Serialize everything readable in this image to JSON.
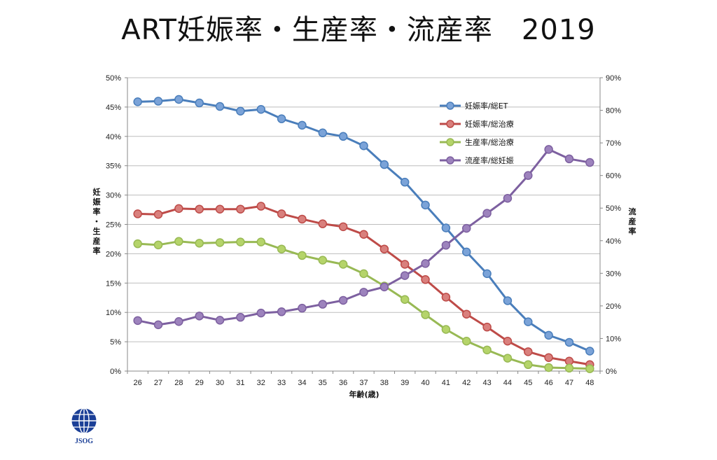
{
  "title": "ART妊娠率・生産率・流産率　2019",
  "logo": {
    "label": "JSOG"
  },
  "chart_data": {
    "type": "line",
    "title": "ART妊娠率・生産率・流産率　2019",
    "xlabel": "年齢(歳)",
    "ylabel": "妊娠率・生産率",
    "y2label": "流産率",
    "x": [
      26,
      27,
      28,
      29,
      30,
      31,
      32,
      33,
      34,
      35,
      36,
      37,
      38,
      39,
      40,
      41,
      42,
      43,
      44,
      45,
      46,
      47,
      48
    ],
    "ylim": [
      0,
      50
    ],
    "y2lim": [
      0,
      90
    ],
    "yticks": [
      "0%",
      "5%",
      "10%",
      "15%",
      "20%",
      "25%",
      "30%",
      "35%",
      "40%",
      "45%",
      "50%"
    ],
    "y2ticks": [
      "0%",
      "10%",
      "20%",
      "30%",
      "40%",
      "50%",
      "60%",
      "70%",
      "80%",
      "90%"
    ],
    "grid": true,
    "legend_position": "top-right",
    "series": [
      {
        "name": "妊娠率/総ET",
        "axis": "left",
        "color": "#4a7ebb",
        "marker": "#7ba3d8",
        "values": [
          45.9,
          46.0,
          46.3,
          45.7,
          45.1,
          44.3,
          44.6,
          43.0,
          41.9,
          40.6,
          40.0,
          38.4,
          35.2,
          32.2,
          28.3,
          24.4,
          20.3,
          16.6,
          12.0,
          8.4,
          6.1,
          4.9,
          3.4
        ]
      },
      {
        "name": "妊娠率/総治療",
        "axis": "left",
        "color": "#be4b48",
        "marker": "#d9807d",
        "values": [
          26.8,
          26.7,
          27.7,
          27.6,
          27.6,
          27.6,
          28.1,
          26.8,
          25.9,
          25.1,
          24.6,
          23.3,
          20.8,
          18.2,
          15.6,
          12.6,
          9.7,
          7.5,
          5.1,
          3.3,
          2.3,
          1.7,
          1.1
        ]
      },
      {
        "name": "生産率/総治療",
        "axis": "left",
        "color": "#98b954",
        "marker": "#b5d46a",
        "values": [
          21.7,
          21.5,
          22.1,
          21.8,
          21.9,
          22.0,
          22.0,
          20.8,
          19.7,
          18.9,
          18.2,
          16.6,
          14.5,
          12.2,
          9.6,
          7.1,
          5.1,
          3.6,
          2.2,
          1.1,
          0.6,
          0.5,
          0.4
        ]
      },
      {
        "name": "流産率/総妊娠",
        "axis": "right",
        "color": "#7d60a0",
        "marker": "#9d83bd",
        "values": [
          15.5,
          14.2,
          15.2,
          16.9,
          15.6,
          16.5,
          17.8,
          18.2,
          19.3,
          20.5,
          21.7,
          24.2,
          25.8,
          29.3,
          33.0,
          38.6,
          43.8,
          48.4,
          53.0,
          60.0,
          68.0,
          65.1,
          64.0
        ]
      }
    ]
  }
}
